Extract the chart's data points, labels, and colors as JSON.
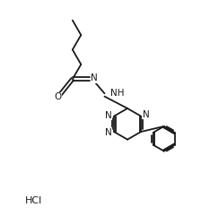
{
  "bg_color": "#ffffff",
  "line_color": "#1a1a1a",
  "line_width": 1.3,
  "font_size": 7.0,
  "hcl_font_size": 8.0,
  "figsize": [
    2.24,
    2.41
  ],
  "dpi": 100,
  "xlim": [
    0,
    10
  ],
  "ylim": [
    0,
    10.7
  ]
}
